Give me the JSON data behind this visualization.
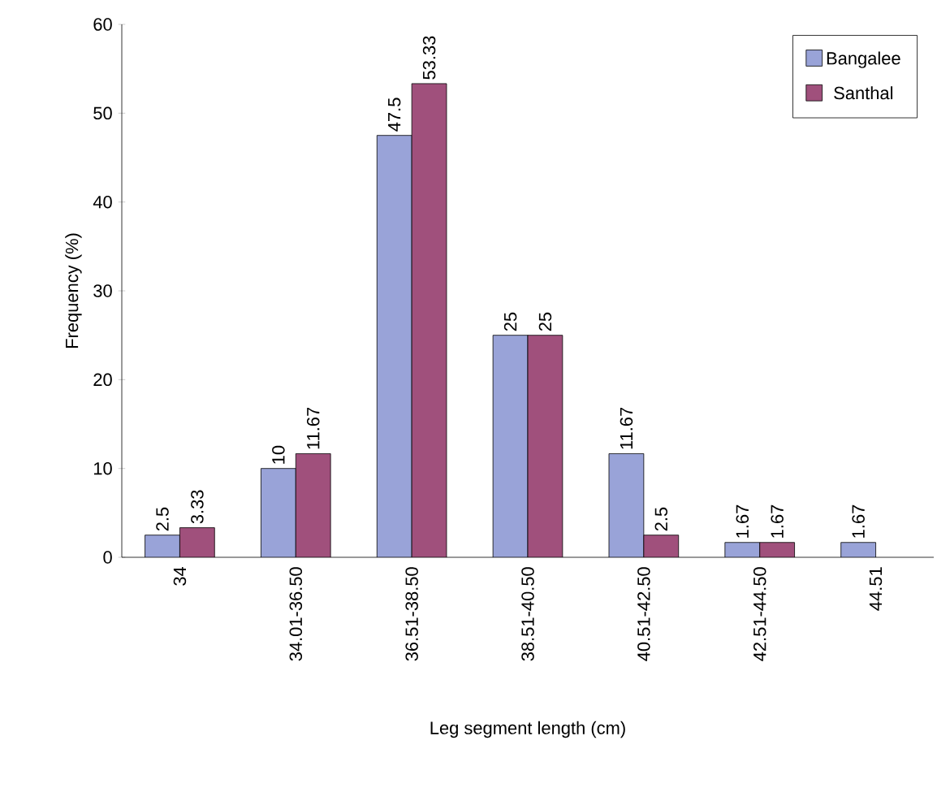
{
  "chart_data": {
    "type": "bar",
    "xlabel": "Leg segment length (cm)",
    "ylabel": "Frequency (%)",
    "categories": [
      "34",
      "34.01-36.50",
      "36.51-38.50",
      "38.51-40.50",
      "40.51-42.50",
      "42.51-44.50",
      "44.51"
    ],
    "series": [
      {
        "name": "Bangalee",
        "color": "#99a3d8",
        "values": [
          2.5,
          10,
          47.5,
          25,
          11.67,
          1.67,
          1.67
        ]
      },
      {
        "name": "Santhal",
        "color": "#a0507c",
        "values": [
          3.33,
          11.67,
          53.33,
          25,
          2.5,
          1.67,
          null
        ]
      }
    ],
    "ylim": [
      0,
      60
    ],
    "yticks": [
      0,
      10,
      20,
      30,
      40,
      50,
      60
    ],
    "data_labels": true,
    "legend": "top right",
    "grid": false
  }
}
